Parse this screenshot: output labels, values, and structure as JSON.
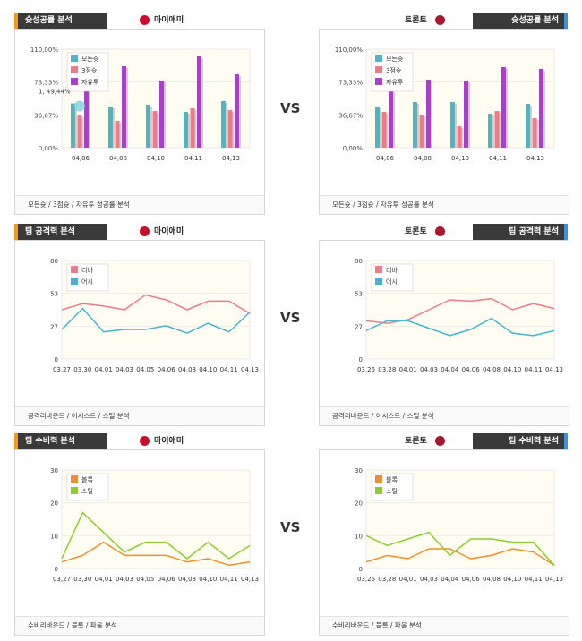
{
  "vs_label": "VS",
  "panels": [
    {
      "side": "left",
      "title": "슛성공률 분석",
      "team": "마이애미",
      "footer": "모든슛 / 3점슛 / 자유투 성공률 분석"
    },
    {
      "side": "right",
      "title": "슛성공률 분석",
      "team": "토론토",
      "footer": "모든슛 / 3점슛 / 자유투 성공률 분석"
    },
    {
      "side": "left",
      "title": "팀 공격력 분석",
      "team": "마이애미",
      "footer": "공격리바운드 / 어시스트 / 스틸 분석"
    },
    {
      "side": "right",
      "title": "팀 공격력 분석",
      "team": "토론토",
      "footer": "공격리바운드 / 어시스트 / 스틸 분석"
    },
    {
      "side": "left",
      "title": "팀 수비력 분석",
      "team": "마이애미",
      "footer": "수비리바운드 / 블록 / 파울 분석"
    },
    {
      "side": "right",
      "title": "팀 수비력 분석",
      "team": "토론토",
      "footer": "수비리바운드 / 블록 / 파울 분석"
    }
  ],
  "colors": {
    "accent_orange": "#f39a1e",
    "accent_blue": "#3f8fd9",
    "header_dark": "#3a3a3a",
    "miami_logo": "#c8102e",
    "toronto_logo": "#a6192e",
    "teal": "#4cb6c3",
    "pink": "#ef7b84",
    "purple": "#a542c9",
    "line_pink": "#f07a87",
    "line_teal": "#45b4cf",
    "orange": "#f58c2a",
    "green": "#8ccc2c",
    "plot_bg": "#fffdf2"
  },
  "chart_data": [
    {
      "type": "bar",
      "team": "마이애미",
      "categories": [
        "04,06",
        "04,08",
        "04,10",
        "04,11",
        "04,13"
      ],
      "ytick_labels": [
        "0,00%",
        "36,67%",
        "73,33%",
        "110,00%"
      ],
      "ylim": [
        0,
        110
      ],
      "series": [
        {
          "name": "모든슛",
          "values": [
            49.44,
            46,
            48,
            40,
            52
          ]
        },
        {
          "name": "3점슛",
          "values": [
            36,
            30,
            41,
            44,
            42
          ]
        },
        {
          "name": "자유투",
          "values": [
            78,
            91,
            75,
            102,
            82
          ]
        }
      ],
      "tooltip": "1, 49,44%"
    },
    {
      "type": "bar",
      "team": "토론토",
      "categories": [
        "04,06",
        "04,08",
        "04,10",
        "04,11",
        "04,13"
      ],
      "ytick_labels": [
        "0,00%",
        "36,67%",
        "73,33%",
        "110,00%"
      ],
      "ylim": [
        0,
        110
      ],
      "series": [
        {
          "name": "모든슛",
          "values": [
            46,
            51,
            51,
            38,
            49
          ]
        },
        {
          "name": "3점슛",
          "values": [
            40,
            37,
            24,
            41,
            33
          ]
        },
        {
          "name": "자유투",
          "values": [
            79,
            76,
            75,
            90,
            88
          ]
        }
      ]
    },
    {
      "type": "line",
      "team": "마이애미",
      "categories": [
        "03,27",
        "03,30",
        "04,01",
        "04,03",
        "04,05",
        "04,06",
        "04,08",
        "04,10",
        "04,11",
        "04,13"
      ],
      "ytick_labels": [
        "0",
        "27",
        "53",
        "80"
      ],
      "ylim": [
        0,
        80
      ],
      "series": [
        {
          "name": "리바",
          "values": [
            40,
            45,
            43,
            40,
            52,
            48,
            40,
            47,
            47,
            37
          ]
        },
        {
          "name": "어시",
          "values": [
            24,
            41,
            22,
            24,
            24,
            27,
            21,
            29,
            22,
            38
          ]
        }
      ]
    },
    {
      "type": "line",
      "team": "토론토",
      "categories": [
        "03,26",
        "03,28",
        "04,01",
        "04,03",
        "04,04",
        "04,06",
        "04,08",
        "04,10",
        "04,11",
        "04,13"
      ],
      "ytick_labels": [
        "0",
        "27",
        "53",
        "80"
      ],
      "ylim": [
        0,
        80
      ],
      "series": [
        {
          "name": "리바",
          "values": [
            31,
            29,
            32,
            40,
            48,
            47,
            49,
            40,
            45,
            41
          ]
        },
        {
          "name": "어시",
          "values": [
            23,
            31,
            31,
            25,
            19,
            24,
            33,
            21,
            19,
            23
          ]
        }
      ]
    },
    {
      "type": "line",
      "team": "마이애미",
      "categories": [
        "03,27",
        "03,30",
        "04,01",
        "04,03",
        "04,05",
        "04,06",
        "04,08",
        "04,10",
        "04,11",
        "04,13"
      ],
      "ytick_labels": [
        "0",
        "10",
        "20",
        "30"
      ],
      "ylim": [
        0,
        30
      ],
      "series": [
        {
          "name": "블록",
          "values": [
            2,
            4,
            8,
            4,
            4,
            4,
            2,
            3,
            1,
            2
          ]
        },
        {
          "name": "스틸",
          "values": [
            3,
            17,
            11,
            5,
            8,
            8,
            3,
            8,
            3,
            7
          ]
        }
      ]
    },
    {
      "type": "line",
      "team": "토론토",
      "categories": [
        "03,26",
        "03,28",
        "04,01",
        "04,03",
        "04,04",
        "04,06",
        "04,08",
        "04,10",
        "04,11",
        "04,13"
      ],
      "ytick_labels": [
        "0",
        "10",
        "20",
        "30"
      ],
      "ylim": [
        0,
        30
      ],
      "series": [
        {
          "name": "블록",
          "values": [
            2,
            4,
            3,
            6,
            6,
            3,
            4,
            6,
            5,
            1
          ]
        },
        {
          "name": "스틸",
          "values": [
            10,
            7,
            9,
            11,
            4,
            9,
            9,
            8,
            8,
            1
          ]
        }
      ]
    }
  ]
}
